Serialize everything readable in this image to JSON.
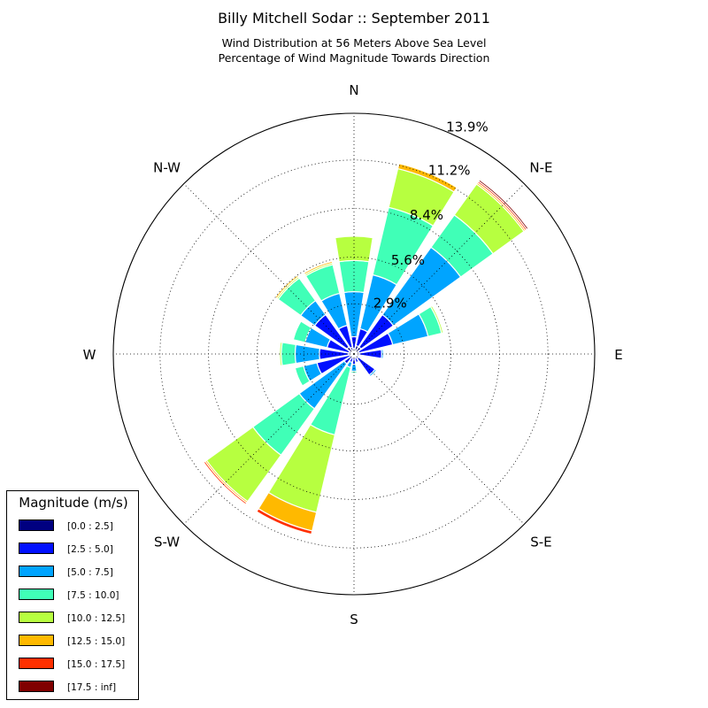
{
  "title": "Billy Mitchell Sodar :: September 2011",
  "subtitle_line1": "Wind Distribution at 56 Meters Above Sea Level",
  "subtitle_line2": "Percentage of Wind Magnitude Towards Direction",
  "legend": {
    "title": "Magnitude (m/s)",
    "items": [
      {
        "label": "[0.0 : 2.5]",
        "color": "#000080"
      },
      {
        "label": "[2.5 : 5.0]",
        "color": "#0010ff"
      },
      {
        "label": "[5.0 : 7.5]",
        "color": "#00a4ff"
      },
      {
        "label": "[7.5 : 10.0]",
        "color": "#40ffb7"
      },
      {
        "label": "[10.0 : 12.5]",
        "color": "#b7ff40"
      },
      {
        "label": "[12.5 : 15.0]",
        "color": "#ffb900"
      },
      {
        "label": "[15.0 : 17.5]",
        "color": "#ff3000"
      },
      {
        "label": "[17.5 : inf]",
        "color": "#800000"
      }
    ]
  },
  "chart_data": {
    "type": "windrose",
    "directions": [
      "N",
      "NNE",
      "NE",
      "ENE",
      "E",
      "ESE",
      "SE",
      "SSE",
      "S",
      "SSW",
      "SW",
      "WSW",
      "W",
      "WNW",
      "NW",
      "NNW"
    ],
    "compass_labels": [
      "N",
      "N-E",
      "E",
      "S-E",
      "S",
      "S-W",
      "W",
      "N-W"
    ],
    "radial_ticks": [
      2.9,
      5.6,
      8.4,
      11.2,
      13.9
    ],
    "radial_tick_labels": [
      "2.9%",
      "5.6%",
      "8.4%",
      "11.2%",
      "13.9%"
    ],
    "rmax": 13.9,
    "bins": [
      "[0.0 : 2.5]",
      "[2.5 : 5.0]",
      "[5.0 : 7.5]",
      "[7.5 : 10.0]",
      "[10.0 : 12.5]",
      "[12.5 : 15.0]",
      "[15.0 : 17.5]",
      "[17.5 : inf]"
    ],
    "series": [
      {
        "direction": "N",
        "values": [
          0.3,
          0.7,
          2.6,
          1.8,
          1.4,
          0.0,
          0.0,
          0.0
        ]
      },
      {
        "direction": "NNE",
        "values": [
          0.5,
          1.0,
          3.2,
          4.0,
          2.3,
          0.3,
          0.0,
          0.0
        ]
      },
      {
        "direction": "NE",
        "values": [
          0.5,
          2.3,
          4.8,
          2.3,
          2.2,
          0.1,
          0.1,
          0.1
        ]
      },
      {
        "direction": "ENE",
        "values": [
          0.3,
          2.0,
          2.1,
          0.8,
          0.1,
          0.0,
          0.0,
          0.0
        ]
      },
      {
        "direction": "E",
        "values": [
          0.3,
          1.3,
          0.1,
          0.0,
          0.0,
          0.0,
          0.0,
          0.0
        ]
      },
      {
        "direction": "ESE",
        "values": [
          0.2,
          0.1,
          0.0,
          0.0,
          0.0,
          0.0,
          0.0,
          0.0
        ]
      },
      {
        "direction": "SE",
        "values": [
          0.3,
          1.2,
          0.1,
          0.0,
          0.0,
          0.0,
          0.0,
          0.0
        ]
      },
      {
        "direction": "SSE",
        "values": [
          0.2,
          0.3,
          0.0,
          0.0,
          0.0,
          0.0,
          0.0,
          0.0
        ]
      },
      {
        "direction": "S",
        "values": [
          0.2,
          0.4,
          0.4,
          0.1,
          0.0,
          0.0,
          0.0,
          0.0
        ]
      },
      {
        "direction": "SSW",
        "values": [
          0.2,
          0.3,
          0.3,
          4.0,
          4.6,
          1.1,
          0.2,
          0.0
        ]
      },
      {
        "direction": "SW",
        "values": [
          0.2,
          0.5,
          3.2,
          3.3,
          3.3,
          0.1,
          0.1,
          0.0
        ]
      },
      {
        "direction": "WSW",
        "values": [
          0.2,
          2.0,
          0.8,
          0.5,
          0.0,
          0.0,
          0.0,
          0.0
        ]
      },
      {
        "direction": "W",
        "values": [
          0.3,
          1.7,
          1.4,
          0.8,
          0.1,
          0.0,
          0.0,
          0.0
        ]
      },
      {
        "direction": "WNW",
        "values": [
          0.3,
          1.3,
          1.3,
          0.7,
          0.0,
          0.0,
          0.0,
          0.0
        ]
      },
      {
        "direction": "NW",
        "values": [
          0.5,
          2.3,
          1.0,
          1.6,
          0.1,
          0.1,
          0.0,
          0.0
        ]
      },
      {
        "direction": "NNW",
        "values": [
          0.4,
          1.3,
          1.9,
          1.7,
          0.1,
          0.1,
          0.0,
          0.0
        ]
      }
    ],
    "grid": true
  }
}
